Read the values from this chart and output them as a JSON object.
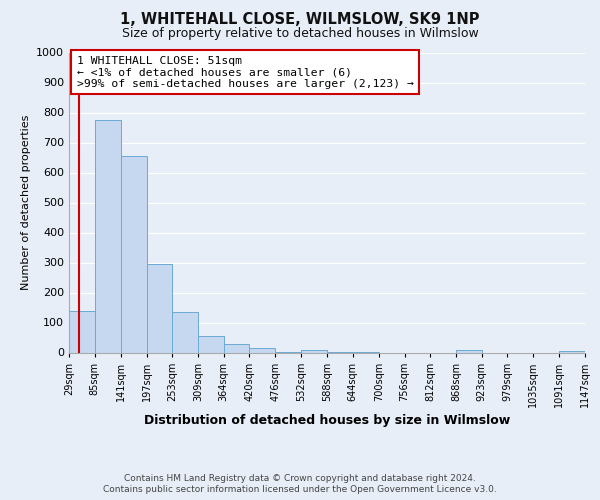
{
  "title": "1, WHITEHALL CLOSE, WILMSLOW, SK9 1NP",
  "subtitle": "Size of property relative to detached houses in Wilmslow",
  "xlabel": "Distribution of detached houses by size in Wilmslow",
  "ylabel": "Number of detached properties",
  "bar_color": "#c5d8f0",
  "bar_edge_color": "#6aaad4",
  "background_color": "#e8eef8",
  "grid_color": "#ffffff",
  "bin_edges": [
    29,
    85,
    141,
    197,
    253,
    309,
    364,
    420,
    476,
    532,
    588,
    644,
    700,
    756,
    812,
    868,
    923,
    979,
    1035,
    1091,
    1147
  ],
  "bar_heights": [
    140,
    775,
    655,
    295,
    135,
    55,
    30,
    15,
    3,
    7,
    2,
    1,
    0,
    0,
    0,
    7,
    0,
    0,
    0,
    4
  ],
  "ylim": [
    0,
    1000
  ],
  "yticks": [
    0,
    100,
    200,
    300,
    400,
    500,
    600,
    700,
    800,
    900,
    1000
  ],
  "annotation_line1": "1 WHITEHALL CLOSE: 51sqm",
  "annotation_line2": "← <1% of detached houses are smaller (6)",
  "annotation_line3": ">99% of semi-detached houses are larger (2,123) →",
  "annotation_box_color": "#ffffff",
  "annotation_border_color": "#cc0000",
  "property_line_x": 51,
  "footnote1": "Contains HM Land Registry data © Crown copyright and database right 2024.",
  "footnote2": "Contains public sector information licensed under the Open Government Licence v3.0."
}
